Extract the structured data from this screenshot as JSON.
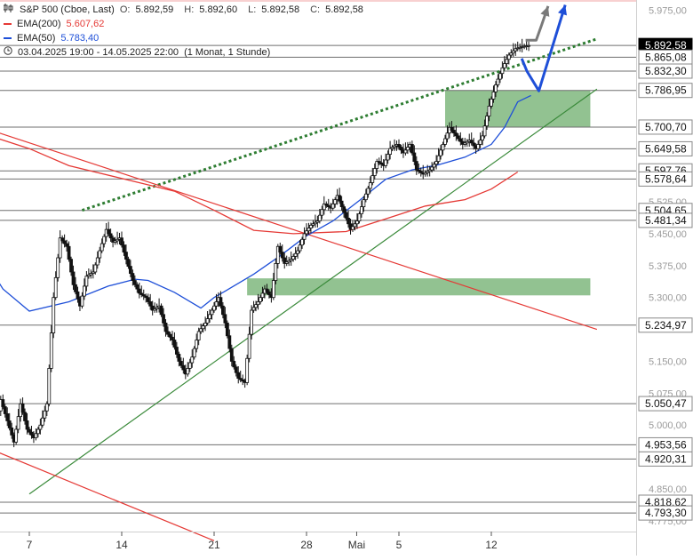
{
  "legend": {
    "instrument": "S&P 500 (Cboe, Last)",
    "ohlc": [
      {
        "label": "O:",
        "value": "5.892,59"
      },
      {
        "label": "H:",
        "value": "5.892,60"
      },
      {
        "label": "L:",
        "value": "5.892,58"
      },
      {
        "label": "C:",
        "value": "5.892,58"
      }
    ],
    "ema200": {
      "label": "EMA(200)",
      "value": "5.607,62",
      "color": "#e53935"
    },
    "ema50": {
      "label": "EMA(50)",
      "value": "5.783,40",
      "color": "#1e4fd8"
    },
    "range": "03.04.2025 19:00 - 14.05.2025 22:00",
    "interval": "(1 Monat, 1 Stunde)",
    "chart_icon": "candlestick-icon",
    "clock_icon": "clock-icon"
  },
  "chart_data": {
    "type": "candlestick",
    "instrument": "S&P 500 (Cboe, Last)",
    "ylim": [
      4740,
      6000
    ],
    "x_ticks": [
      {
        "day": 7,
        "label": "7"
      },
      {
        "day": 14,
        "label": "14"
      },
      {
        "day": 21,
        "label": "21"
      },
      {
        "day": 28,
        "label": "28"
      },
      {
        "day": 31.8,
        "label": "Mai"
      },
      {
        "day": 35,
        "label": "5"
      },
      {
        "day": 42,
        "label": "12"
      }
    ],
    "y_ticks": [
      "5.975,00",
      "5.300,00",
      "5.375,00",
      "5.450,00",
      "5.525,00",
      "5.150,00",
      "5.075,00",
      "5.000,00",
      "4.850,00",
      "4.775,00"
    ],
    "price_levels": [
      {
        "value": 5892.58,
        "label": "5.892,58",
        "current": true
      },
      {
        "value": 5865.08,
        "label": "5.865,08"
      },
      {
        "value": 5832.3,
        "label": "5.832,30"
      },
      {
        "value": 5786.95,
        "label": "5.786,95"
      },
      {
        "value": 5700.7,
        "label": "5.700,70"
      },
      {
        "value": 5649.58,
        "label": "5.649,58"
      },
      {
        "value": 5597.76,
        "label": "5.597,76"
      },
      {
        "value": 5578.64,
        "label": "5.578,64"
      },
      {
        "value": 5504.65,
        "label": "5.504,65"
      },
      {
        "value": 5481.34,
        "label": "5.481,34"
      },
      {
        "value": 5234.97,
        "label": "5.234,97"
      },
      {
        "value": 5050.47,
        "label": "5.050,47"
      },
      {
        "value": 4953.56,
        "label": "4.953,56"
      },
      {
        "value": 4920.31,
        "label": "4.920,31"
      },
      {
        "value": 4818.62,
        "label": "4.818,62"
      },
      {
        "value": 4793.3,
        "label": "4.793,30"
      }
    ],
    "zones": [
      {
        "from": [
          38.5,
          5786.95
        ],
        "to": [
          49.5,
          5700.7
        ],
        "color": "#7fb77e"
      },
      {
        "from": [
          23.5,
          5345
        ],
        "to": [
          49.5,
          5305
        ],
        "color": "#7fb77e"
      }
    ],
    "trendlines": [
      {
        "name": "support",
        "points": [
          [
            7,
            4838
          ],
          [
            50,
            5790
          ]
        ],
        "color": "#3a8a3a",
        "style": "solid"
      },
      {
        "name": "resistance",
        "points": [
          [
            11,
            5505
          ],
          [
            50,
            5908
          ]
        ],
        "color": "#2e7d32",
        "style": "dotted"
      },
      {
        "name": "downtrend-upper",
        "points": [
          [
            0,
            5735
          ],
          [
            50,
            5225
          ]
        ],
        "color": "#e53935",
        "style": "solid"
      },
      {
        "name": "downtrend-lower",
        "points": [
          [
            0,
            4995
          ],
          [
            21,
            4728
          ]
        ],
        "color": "#e53935",
        "style": "solid"
      }
    ],
    "projections": [
      {
        "color": "#1e4fd8",
        "points": [
          [
            44.3,
            5862
          ],
          [
            44.7,
            5832
          ],
          [
            45.6,
            5786
          ],
          [
            47.6,
            5988
          ]
        ]
      },
      {
        "color": "#7a7a7a",
        "points": [
          [
            44.6,
            5905
          ],
          [
            45.4,
            5905
          ],
          [
            45.8,
            5940
          ],
          [
            46.3,
            5985
          ]
        ]
      }
    ],
    "ema200": [
      [
        0,
        5730
      ],
      [
        3,
        5690
      ],
      [
        7,
        5650
      ],
      [
        10,
        5610
      ],
      [
        14,
        5580
      ],
      [
        18,
        5550
      ],
      [
        21,
        5505
      ],
      [
        24,
        5458
      ],
      [
        27,
        5450
      ],
      [
        31,
        5455
      ],
      [
        34,
        5485
      ],
      [
        37,
        5515
      ],
      [
        40,
        5530
      ],
      [
        42,
        5555
      ],
      [
        44,
        5595
      ]
    ],
    "ema50": [
      [
        0,
        5675
      ],
      [
        2,
        5550
      ],
      [
        4,
        5370
      ],
      [
        5,
        5320
      ],
      [
        7,
        5268
      ],
      [
        10,
        5290
      ],
      [
        13,
        5327
      ],
      [
        15,
        5343
      ],
      [
        16,
        5340
      ],
      [
        18,
        5312
      ],
      [
        20,
        5275
      ],
      [
        21,
        5300
      ],
      [
        22,
        5318
      ],
      [
        24,
        5355
      ],
      [
        26,
        5398
      ],
      [
        28,
        5445
      ],
      [
        30,
        5480
      ],
      [
        32,
        5528
      ],
      [
        34,
        5578
      ],
      [
        36,
        5600
      ],
      [
        38,
        5612
      ],
      [
        40,
        5630
      ],
      [
        42,
        5660
      ],
      [
        43,
        5700
      ],
      [
        44,
        5760
      ],
      [
        45,
        5775
      ]
    ],
    "close_path": [
      [
        0,
        5475
      ],
      [
        0.5,
        5440
      ],
      [
        1,
        5330
      ],
      [
        1.5,
        5200
      ],
      [
        2,
        5110
      ],
      [
        2.5,
        5160
      ],
      [
        3,
        4980
      ],
      [
        3.5,
        4960
      ],
      [
        4,
        4995
      ],
      [
        4.5,
        4980
      ],
      [
        5,
        5060
      ],
      [
        5.5,
        5010
      ],
      [
        6,
        4960
      ],
      [
        6.5,
        5050
      ],
      [
        7,
        4990
      ],
      [
        7.5,
        4970
      ],
      [
        8,
        5000
      ],
      [
        8.5,
        5050
      ],
      [
        9,
        5300
      ],
      [
        9.5,
        5440
      ],
      [
        10,
        5420
      ],
      [
        10.5,
        5330
      ],
      [
        11,
        5280
      ],
      [
        11.5,
        5350
      ],
      [
        12,
        5360
      ],
      [
        12.5,
        5410
      ],
      [
        13,
        5460
      ],
      [
        13.5,
        5430
      ],
      [
        14,
        5440
      ],
      [
        14.5,
        5390
      ],
      [
        15,
        5340
      ],
      [
        15.5,
        5310
      ],
      [
        16,
        5300
      ],
      [
        16.5,
        5270
      ],
      [
        17,
        5280
      ],
      [
        17.5,
        5220
      ],
      [
        18,
        5200
      ],
      [
        18.5,
        5150
      ],
      [
        19,
        5120
      ],
      [
        19.5,
        5160
      ],
      [
        20,
        5220
      ],
      [
        20.5,
        5240
      ],
      [
        21,
        5270
      ],
      [
        21.5,
        5300
      ],
      [
        22,
        5240
      ],
      [
        22.5,
        5150
      ],
      [
        23,
        5110
      ],
      [
        23.5,
        5100
      ],
      [
        24,
        5270
      ],
      [
        24.5,
        5290
      ],
      [
        25,
        5320
      ],
      [
        25.5,
        5300
      ],
      [
        26,
        5420
      ],
      [
        26.5,
        5380
      ],
      [
        27,
        5390
      ],
      [
        27.5,
        5410
      ],
      [
        28,
        5450
      ],
      [
        28.5,
        5470
      ],
      [
        29,
        5480
      ],
      [
        29.5,
        5520
      ],
      [
        30,
        5510
      ],
      [
        30.5,
        5540
      ],
      [
        31,
        5500
      ],
      [
        31.5,
        5460
      ],
      [
        32,
        5480
      ],
      [
        32.5,
        5530
      ],
      [
        33,
        5570
      ],
      [
        33.5,
        5620
      ],
      [
        34,
        5610
      ],
      [
        34.5,
        5650
      ],
      [
        35,
        5660
      ],
      [
        35.5,
        5640
      ],
      [
        36,
        5660
      ],
      [
        36.5,
        5600
      ],
      [
        37,
        5590
      ],
      [
        37.5,
        5600
      ],
      [
        38,
        5620
      ],
      [
        38.5,
        5660
      ],
      [
        39,
        5700
      ],
      [
        39.5,
        5680
      ],
      [
        40,
        5660
      ],
      [
        40.5,
        5670
      ],
      [
        41,
        5650
      ],
      [
        41.5,
        5680
      ],
      [
        42,
        5750
      ],
      [
        42.5,
        5800
      ],
      [
        43,
        5840
      ],
      [
        43.5,
        5870
      ],
      [
        44,
        5885
      ],
      [
        44.5,
        5890
      ],
      [
        45,
        5892.58
      ]
    ]
  }
}
